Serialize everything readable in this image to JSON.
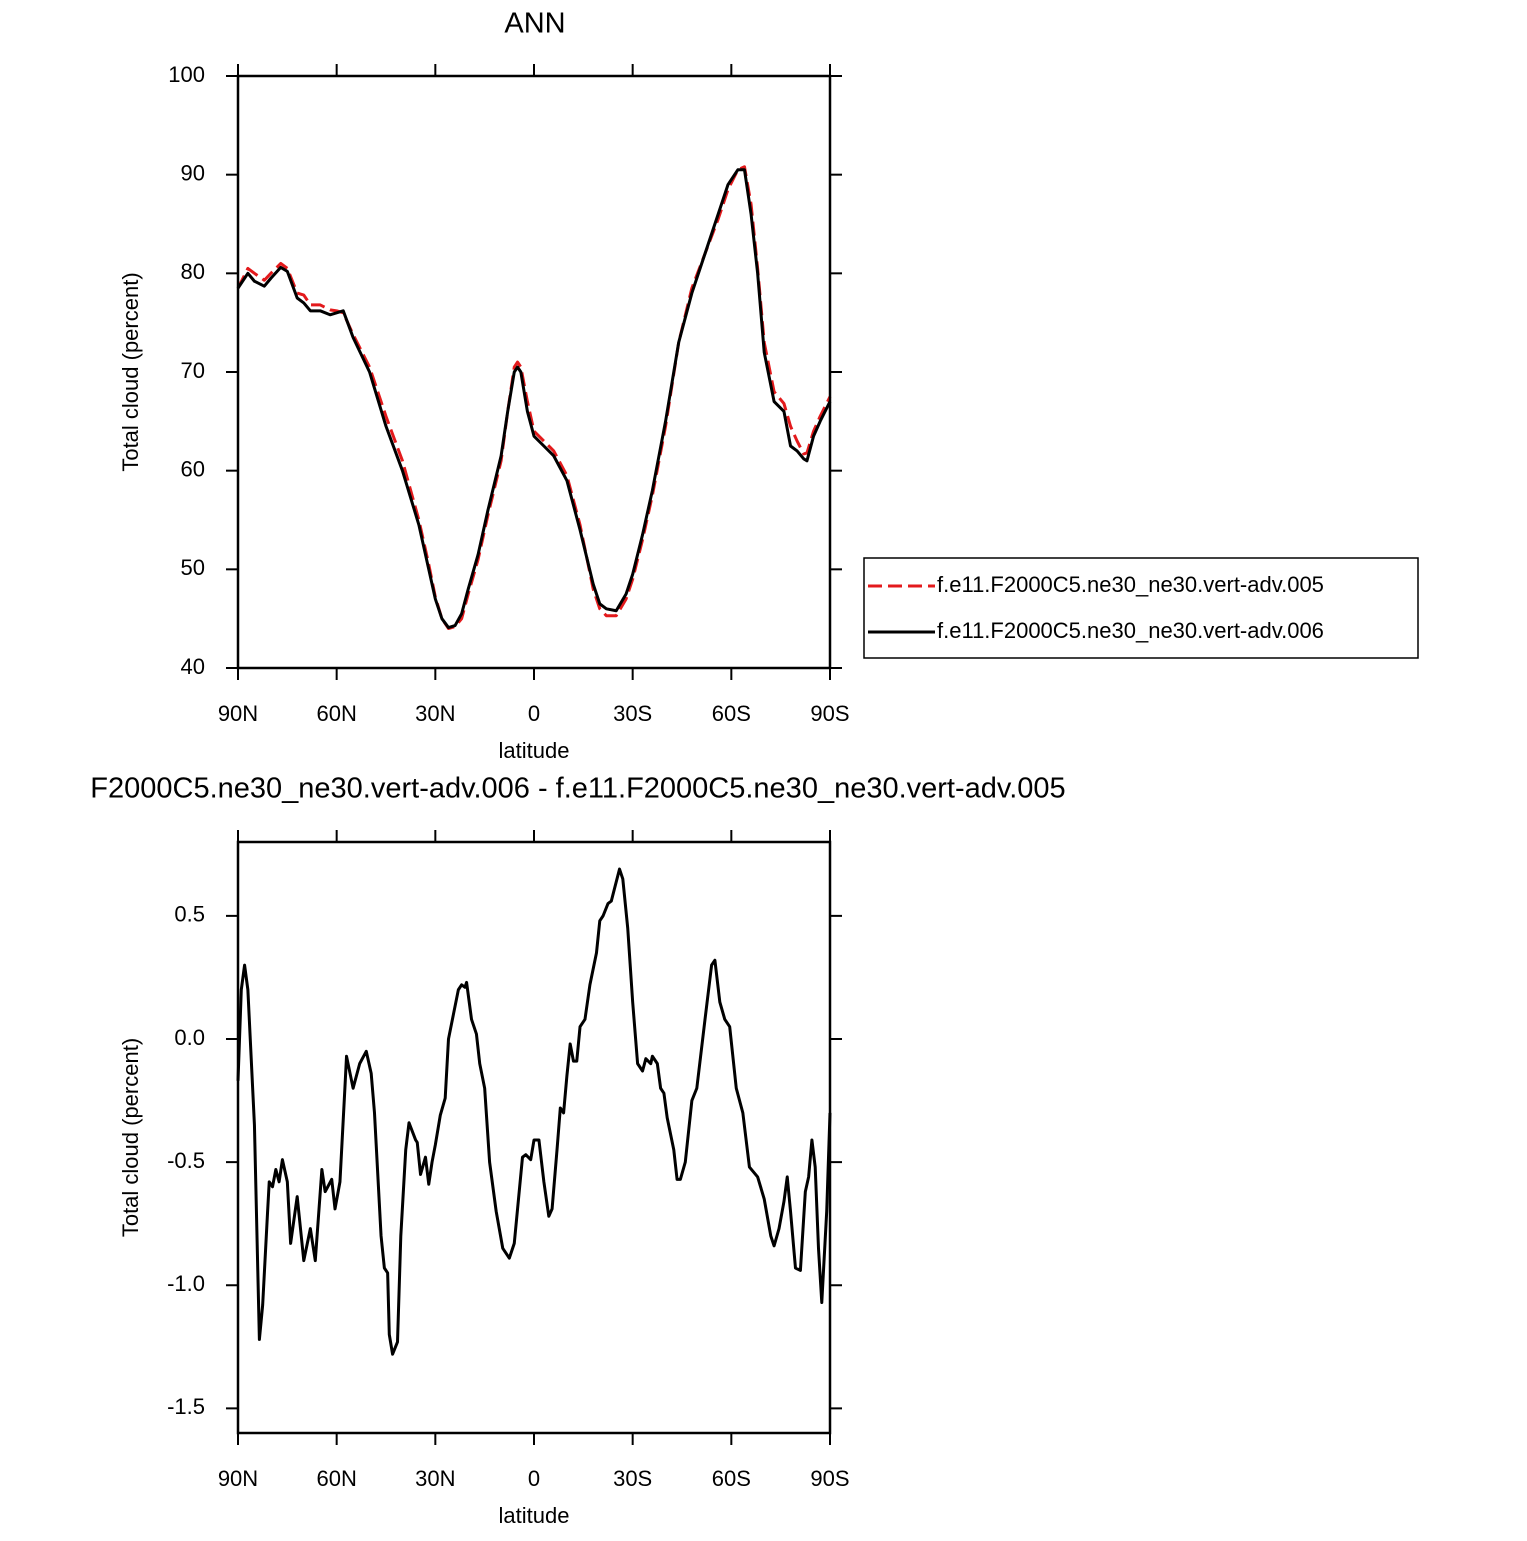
{
  "chart_data": [
    {
      "type": "line",
      "title": "ANN",
      "xlabel": "latitude",
      "ylabel": "Total cloud (percent)",
      "x": [
        90,
        87,
        85,
        82,
        80,
        77,
        75,
        72,
        70,
        68,
        65,
        62,
        60,
        58,
        55,
        50,
        45,
        40,
        35,
        32,
        30,
        28,
        26,
        24,
        22,
        20,
        17,
        14,
        10,
        8,
        6,
        5,
        4,
        2,
        0,
        -3,
        -6,
        -10,
        -14,
        -18,
        -20,
        -22,
        -25,
        -28,
        -30,
        -33,
        -36,
        -40,
        -44,
        -48,
        -52,
        -56,
        -59,
        -62,
        -64,
        -66,
        -68,
        -70,
        -73,
        -76,
        -78,
        -80,
        -82,
        -83,
        -85,
        -87,
        -90
      ],
      "series": [
        {
          "name": "f.e11.F2000C5.ne30_ne30.vert-adv.005",
          "color": "#e31a1c",
          "dash": "dashed",
          "values": [
            78.5,
            80.5,
            80,
            79.3,
            80,
            81,
            80.5,
            78,
            77.8,
            76.8,
            76.8,
            76.3,
            76.2,
            76,
            73.8,
            70.5,
            65.5,
            61,
            55,
            50.5,
            47.2,
            45,
            44,
            44.2,
            45,
            47.5,
            51,
            55.5,
            61,
            66,
            70.5,
            71,
            70.5,
            67,
            64,
            63,
            62,
            59.5,
            54.5,
            48,
            46,
            45.3,
            45.3,
            47,
            49,
            53,
            57.5,
            64.5,
            73,
            78.5,
            82,
            85.5,
            88.5,
            90.5,
            90.8,
            87,
            80.5,
            73,
            68,
            66.8,
            64.5,
            63,
            61.7,
            61.8,
            64,
            65.5,
            67.5
          ]
        },
        {
          "name": "f.e11.F2000C5.ne30_ne30.vert-adv.006",
          "color": "#000000",
          "dash": "solid",
          "values": [
            78.5,
            80,
            79.2,
            78.7,
            79.5,
            80.6,
            80.2,
            77.5,
            77,
            76.2,
            76.2,
            75.8,
            76,
            76.2,
            73.5,
            70,
            64.5,
            60,
            54.5,
            50,
            47,
            45,
            44.1,
            44.3,
            45.5,
            48,
            51.5,
            56,
            61.5,
            66,
            70,
            70.5,
            70,
            66,
            63.5,
            62.5,
            61.5,
            59,
            54,
            48.5,
            46.5,
            46,
            45.8,
            47.5,
            49.5,
            53.5,
            58,
            65,
            73,
            78,
            82,
            86,
            89,
            90.5,
            90.5,
            86,
            80,
            72,
            67,
            66,
            62.5,
            62,
            61.2,
            61,
            63.5,
            65,
            67
          ]
        }
      ],
      "xlim": [
        90,
        -90
      ],
      "xticks": [
        {
          "value": 90,
          "label": "90N"
        },
        {
          "value": 60,
          "label": "60N"
        },
        {
          "value": 30,
          "label": "30N"
        },
        0,
        {
          "value": -30,
          "label": "30S"
        },
        {
          "value": -60,
          "label": "60S"
        },
        {
          "value": -90,
          "label": "90S"
        }
      ],
      "ylim": [
        40,
        100
      ],
      "yticks": [
        40,
        50,
        60,
        70,
        80,
        90,
        100
      ],
      "grid": false,
      "legend": "right"
    },
    {
      "type": "line",
      "title": "F2000C5.ne30_ne30.vert-adv.006 - f.e11.F2000C5.ne30_ne30.vert-adv.005",
      "xlabel": "latitude",
      "ylabel": "Total cloud (percent)",
      "x": [
        90,
        89,
        88,
        87,
        85,
        83.5,
        82.5,
        81,
        80.5,
        79.5,
        78.5,
        77.5,
        76.5,
        75,
        74,
        72,
        70,
        68,
        66.5,
        64.5,
        63.5,
        61.5,
        60.5,
        59,
        57.5,
        57,
        55,
        53,
        51,
        49.5,
        48.5,
        46.5,
        45.5,
        44.5,
        44,
        43,
        41.5,
        40.5,
        39,
        38,
        36,
        35.5,
        34.5,
        33,
        32,
        31,
        30,
        28.5,
        27,
        26,
        24.5,
        23,
        22,
        21,
        20.5,
        19,
        17.5,
        16.5,
        15,
        13.5,
        11.5,
        9.5,
        7.5,
        6,
        3.5,
        2.5,
        1,
        0,
        -1.5,
        -3,
        -4.5,
        -5.5,
        -7,
        -8,
        -9,
        -10,
        -11,
        -12,
        -13,
        -14,
        -15.5,
        -17,
        -19,
        -20,
        -21,
        -22.5,
        -23.5,
        -26,
        -27,
        -28.5,
        -30,
        -31.5,
        -33,
        -34,
        -35.5,
        -36,
        -37.5,
        -38.5,
        -39.5,
        -40.5,
        -42.5,
        -43.5,
        -44.5,
        -46,
        -48,
        -49.5,
        -52,
        -54,
        -55,
        -56.5,
        -58,
        -59.5,
        -61.5,
        -63.5,
        -65.5,
        -68,
        -70,
        -72,
        -73,
        -74.5,
        -76,
        -77,
        -78,
        -79.5,
        -81,
        -82.5,
        -83.5,
        -84.5,
        -85.5,
        -86.5,
        -87.5,
        -89,
        -90
      ],
      "series": [
        {
          "color": "#000000",
          "dash": "solid",
          "values": [
            -0.17,
            0.2,
            0.3,
            0.2,
            -0.35,
            -1.22,
            -1.08,
            -0.7,
            -0.58,
            -0.6,
            -0.53,
            -0.58,
            -0.49,
            -0.58,
            -0.83,
            -0.64,
            -0.9,
            -0.77,
            -0.9,
            -0.53,
            -0.62,
            -0.57,
            -0.69,
            -0.58,
            -0.2,
            -0.07,
            -0.2,
            -0.1,
            -0.05,
            -0.14,
            -0.3,
            -0.8,
            -0.93,
            -0.95,
            -1.2,
            -1.28,
            -1.23,
            -0.8,
            -0.45,
            -0.34,
            -0.41,
            -0.42,
            -0.55,
            -0.48,
            -0.59,
            -0.5,
            -0.43,
            -0.31,
            -0.24,
            0,
            0.1,
            0.2,
            0.22,
            0.21,
            0.23,
            0.08,
            0.02,
            -0.1,
            -0.2,
            -0.5,
            -0.7,
            -0.85,
            -0.89,
            -0.83,
            -0.48,
            -0.47,
            -0.49,
            -0.41,
            -0.41,
            -0.58,
            -0.72,
            -0.69,
            -0.45,
            -0.28,
            -0.3,
            -0.15,
            -0.02,
            -0.09,
            -0.09,
            0.05,
            0.08,
            0.22,
            0.35,
            0.48,
            0.5,
            0.55,
            0.56,
            0.69,
            0.65,
            0.45,
            0.15,
            -0.1,
            -0.13,
            -0.08,
            -0.1,
            -0.07,
            -0.1,
            -0.2,
            -0.22,
            -0.32,
            -0.45,
            -0.57,
            -0.57,
            -0.5,
            -0.25,
            -0.2,
            0.08,
            0.3,
            0.32,
            0.15,
            0.08,
            0.05,
            -0.2,
            -0.3,
            -0.52,
            -0.56,
            -0.65,
            -0.8,
            -0.84,
            -0.77,
            -0.66,
            -0.56,
            -0.7,
            -0.93,
            -0.94,
            -0.62,
            -0.56,
            -0.41,
            -0.52,
            -0.85,
            -1.07,
            -0.7,
            -0.3
          ]
        }
      ],
      "xlim": [
        90,
        -90
      ],
      "xticks": [
        {
          "value": 90,
          "label": "90N"
        },
        {
          "value": 60,
          "label": "60N"
        },
        {
          "value": 30,
          "label": "30N"
        },
        0,
        {
          "value": -30,
          "label": "30S"
        },
        {
          "value": -60,
          "label": "60S"
        },
        {
          "value": -90,
          "label": "90S"
        }
      ],
      "ylim": [
        -1.6,
        0.8
      ],
      "yticks": [
        -1.5,
        {
          "value": -1,
          "label": "-1.0"
        },
        -0.5,
        {
          "value": 0,
          "label": "0.0"
        },
        0.5
      ],
      "grid": false
    }
  ]
}
